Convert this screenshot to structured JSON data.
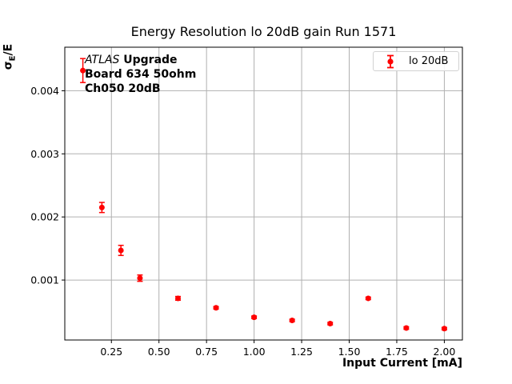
{
  "figure": {
    "title": "Energy Resolution lo 20dB gain Run 1571",
    "xlabel": "Input Current [mA]",
    "ylabel": {
      "sigma": "σ",
      "sub": "E",
      "rest": "/E"
    },
    "annotation": {
      "experiment": "ATLAS",
      "experiment_suffix": " Upgrade",
      "board": "Board 634 50ohm",
      "channel": "Ch050 20dB"
    },
    "legend": {
      "label": "lo 20dB",
      "marker_icon": "errorbar-icon"
    },
    "colors": {
      "series": "#ff0000",
      "grid": "#b0b0b0",
      "axes": "#000000",
      "legend_border": "#d2d2d2",
      "background": "#ffffff"
    }
  },
  "chart_data": {
    "type": "scatter",
    "title": "Energy Resolution lo 20dB gain Run 1571",
    "xlabel": "Input Current [mA]",
    "ylabel": "σ_E/E",
    "legend_position": "upper right",
    "grid": true,
    "xlim": [
      0.005,
      2.095
    ],
    "ylim": [
      5e-05,
      0.00469
    ],
    "xticks": [
      0.25,
      0.5,
      0.75,
      1.0,
      1.25,
      1.5,
      1.75,
      2.0
    ],
    "xtick_labels": [
      "0.25",
      "0.50",
      "0.75",
      "1.00",
      "1.25",
      "1.50",
      "1.75",
      "2.00"
    ],
    "yticks": [
      0.001,
      0.002,
      0.003,
      0.004
    ],
    "ytick_labels": [
      "0.001",
      "0.002",
      "0.003",
      "0.004"
    ],
    "series": [
      {
        "name": "lo 20dB",
        "color": "#ff0000",
        "marker": "circle",
        "x": [
          0.1,
          0.2,
          0.3,
          0.4,
          0.6,
          0.8,
          1.0,
          1.2,
          1.4,
          1.6,
          1.8,
          2.0
        ],
        "y": [
          0.00432,
          0.00215,
          0.00147,
          0.00103,
          0.00071,
          0.00056,
          0.00041,
          0.00036,
          0.00031,
          0.00071,
          0.00024,
          0.00023
        ],
        "yerr": [
          0.00019,
          8e-05,
          8e-05,
          5e-05,
          3e-05,
          2e-05,
          2e-05,
          2e-05,
          2e-05,
          2e-05,
          2e-05,
          2e-05
        ]
      }
    ]
  }
}
